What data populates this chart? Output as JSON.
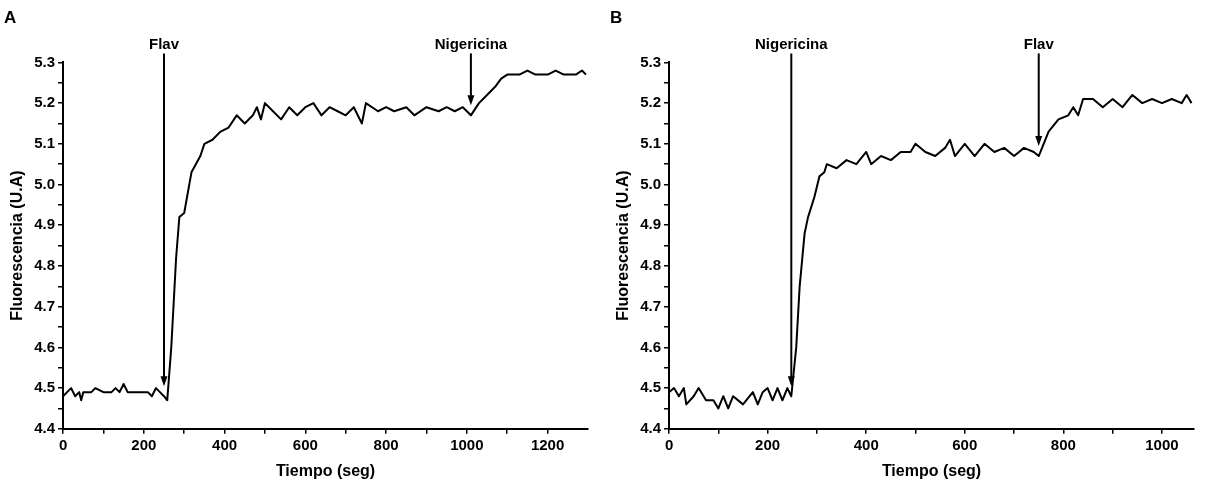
{
  "chart_data": [
    {
      "type": "line",
      "title": "A",
      "xlabel": "Tiempo (seg)",
      "ylabel": "Fluorescencia (U.A)",
      "grid": false,
      "marker": "none",
      "line_style": "solid",
      "x": [
        0,
        10,
        20,
        30,
        40,
        45,
        50,
        70,
        80,
        100,
        120,
        130,
        140,
        150,
        160,
        180,
        200,
        210,
        220,
        230,
        240,
        250,
        258,
        268,
        280,
        288,
        300,
        318,
        340,
        350,
        370,
        390,
        410,
        430,
        450,
        470,
        480,
        490,
        500,
        520,
        540,
        560,
        580,
        600,
        620,
        640,
        660,
        680,
        700,
        720,
        740,
        750,
        780,
        800,
        820,
        850,
        870,
        900,
        930,
        950,
        970,
        990,
        1010,
        1030,
        1050,
        1070,
        1085,
        1100,
        1130,
        1150,
        1170,
        1200,
        1220,
        1240,
        1270,
        1285,
        1295
      ],
      "series": [
        {
          "color": "#000000",
          "values": [
            4.48,
            4.49,
            4.5,
            4.48,
            4.49,
            4.47,
            4.49,
            4.49,
            4.5,
            4.49,
            4.49,
            4.5,
            4.49,
            4.51,
            4.49,
            4.49,
            4.49,
            4.49,
            4.48,
            4.5,
            4.49,
            4.48,
            4.47,
            4.6,
            4.82,
            4.92,
            4.93,
            5.03,
            5.07,
            5.1,
            5.11,
            5.13,
            5.14,
            5.17,
            5.15,
            5.17,
            5.19,
            5.16,
            5.2,
            5.18,
            5.16,
            5.19,
            5.17,
            5.19,
            5.2,
            5.17,
            5.19,
            5.18,
            5.17,
            5.19,
            5.15,
            5.2,
            5.18,
            5.19,
            5.18,
            5.19,
            5.17,
            5.19,
            5.18,
            5.19,
            5.18,
            5.19,
            5.17,
            5.2,
            5.22,
            5.24,
            5.26,
            5.27,
            5.27,
            5.28,
            5.27,
            5.27,
            5.28,
            5.27,
            5.27,
            5.28,
            5.27
          ]
        }
      ],
      "xlim": [
        0,
        1300
      ],
      "xticks": [
        0,
        {
          "value": 100,
          "label": null
        },
        200,
        {
          "value": 300,
          "label": null
        },
        400,
        {
          "value": 500,
          "label": null
        },
        600,
        {
          "value": 700,
          "label": null
        },
        800,
        {
          "value": 900,
          "label": null
        },
        1000,
        {
          "value": 1100,
          "label": null
        },
        1200
      ],
      "ylim": [
        4.4,
        5.3
      ],
      "yticks": [
        {
          "value": 4.4,
          "label": "4.4"
        },
        {
          "value": 4.45,
          "label": null
        },
        {
          "value": 4.5,
          "label": "4.5"
        },
        {
          "value": 4.55,
          "label": null
        },
        {
          "value": 4.6,
          "label": "4.6"
        },
        {
          "value": 4.65,
          "label": null
        },
        {
          "value": 4.7,
          "label": "4.7"
        },
        {
          "value": 4.75,
          "label": null
        },
        {
          "value": 4.8,
          "label": "4.8"
        },
        {
          "value": 4.85,
          "label": null
        },
        {
          "value": 4.9,
          "label": "4.9"
        },
        {
          "value": 4.95,
          "label": null
        },
        {
          "value": 5,
          "label": "5.0"
        },
        {
          "value": 5.05,
          "label": null
        },
        {
          "value": 5.1,
          "label": "5.1"
        },
        {
          "value": 5.15,
          "label": null
        },
        {
          "value": 5.2,
          "label": "5.2"
        },
        {
          "value": 5.25,
          "label": null
        },
        {
          "value": 5.3,
          "label": "5.3"
        }
      ],
      "ref_lines": [
        {
          "axis": "x",
          "value": 250,
          "label": "Flav"
        },
        {
          "axis": "x",
          "value": 1010,
          "label": "Nigericina"
        }
      ]
    },
    {
      "type": "line",
      "title": "B",
      "xlabel": "Tiempo (seg)",
      "ylabel": "Fluorescencia (U.A)",
      "grid": false,
      "marker": "none",
      "line_style": "solid",
      "x": [
        0,
        10,
        20,
        30,
        35,
        50,
        60,
        75,
        90,
        100,
        110,
        120,
        130,
        150,
        170,
        180,
        190,
        200,
        210,
        220,
        230,
        240,
        248,
        258,
        265,
        275,
        282,
        295,
        305,
        315,
        320,
        340,
        360,
        380,
        400,
        410,
        430,
        450,
        470,
        490,
        500,
        520,
        540,
        560,
        570,
        580,
        600,
        620,
        640,
        660,
        680,
        700,
        720,
        740,
        750,
        770,
        790,
        810,
        820,
        830,
        840,
        860,
        880,
        900,
        920,
        940,
        960,
        980,
        1000,
        1020,
        1040,
        1050,
        1060
      ],
      "series": [
        {
          "color": "#000000",
          "values": [
            4.49,
            4.5,
            4.48,
            4.5,
            4.46,
            4.48,
            4.5,
            4.47,
            4.47,
            4.45,
            4.48,
            4.45,
            4.48,
            4.46,
            4.49,
            4.46,
            4.49,
            4.5,
            4.47,
            4.5,
            4.47,
            4.5,
            4.48,
            4.6,
            4.75,
            4.88,
            4.92,
            4.97,
            5.02,
            5.03,
            5.05,
            5.04,
            5.06,
            5.05,
            5.08,
            5.05,
            5.07,
            5.06,
            5.08,
            5.08,
            5.1,
            5.08,
            5.07,
            5.09,
            5.11,
            5.07,
            5.1,
            5.07,
            5.1,
            5.08,
            5.09,
            5.07,
            5.09,
            5.08,
            5.07,
            5.13,
            5.16,
            5.17,
            5.19,
            5.17,
            5.21,
            5.21,
            5.19,
            5.21,
            5.19,
            5.22,
            5.2,
            5.21,
            5.2,
            5.21,
            5.2,
            5.22,
            5.2
          ]
        }
      ],
      "xlim": [
        0,
        1065
      ],
      "xticks": [
        0,
        {
          "value": 100,
          "label": null
        },
        200,
        {
          "value": 300,
          "label": null
        },
        400,
        {
          "value": 500,
          "label": null
        },
        600,
        {
          "value": 700,
          "label": null
        },
        800,
        {
          "value": 900,
          "label": null
        },
        1000
      ],
      "ylim": [
        4.4,
        5.3
      ],
      "yticks": [
        {
          "value": 4.4,
          "label": "4.4"
        },
        {
          "value": 4.45,
          "label": null
        },
        {
          "value": 4.5,
          "label": "4.5"
        },
        {
          "value": 4.55,
          "label": null
        },
        {
          "value": 4.6,
          "label": "4.6"
        },
        {
          "value": 4.65,
          "label": null
        },
        {
          "value": 4.7,
          "label": "4.7"
        },
        {
          "value": 4.75,
          "label": null
        },
        {
          "value": 4.8,
          "label": "4.8"
        },
        {
          "value": 4.85,
          "label": null
        },
        {
          "value": 4.9,
          "label": "4.9"
        },
        {
          "value": 4.95,
          "label": null
        },
        {
          "value": 5,
          "label": "5.0"
        },
        {
          "value": 5.05,
          "label": null
        },
        {
          "value": 5.1,
          "label": "5.1"
        },
        {
          "value": 5.15,
          "label": null
        },
        {
          "value": 5.2,
          "label": "5.2"
        },
        {
          "value": 5.25,
          "label": null
        },
        {
          "value": 5.3,
          "label": "5.3"
        }
      ],
      "ref_lines": [
        {
          "axis": "x",
          "value": 248,
          "label": "Nigericina"
        },
        {
          "axis": "x",
          "value": 750,
          "label": "Flav"
        }
      ]
    }
  ]
}
